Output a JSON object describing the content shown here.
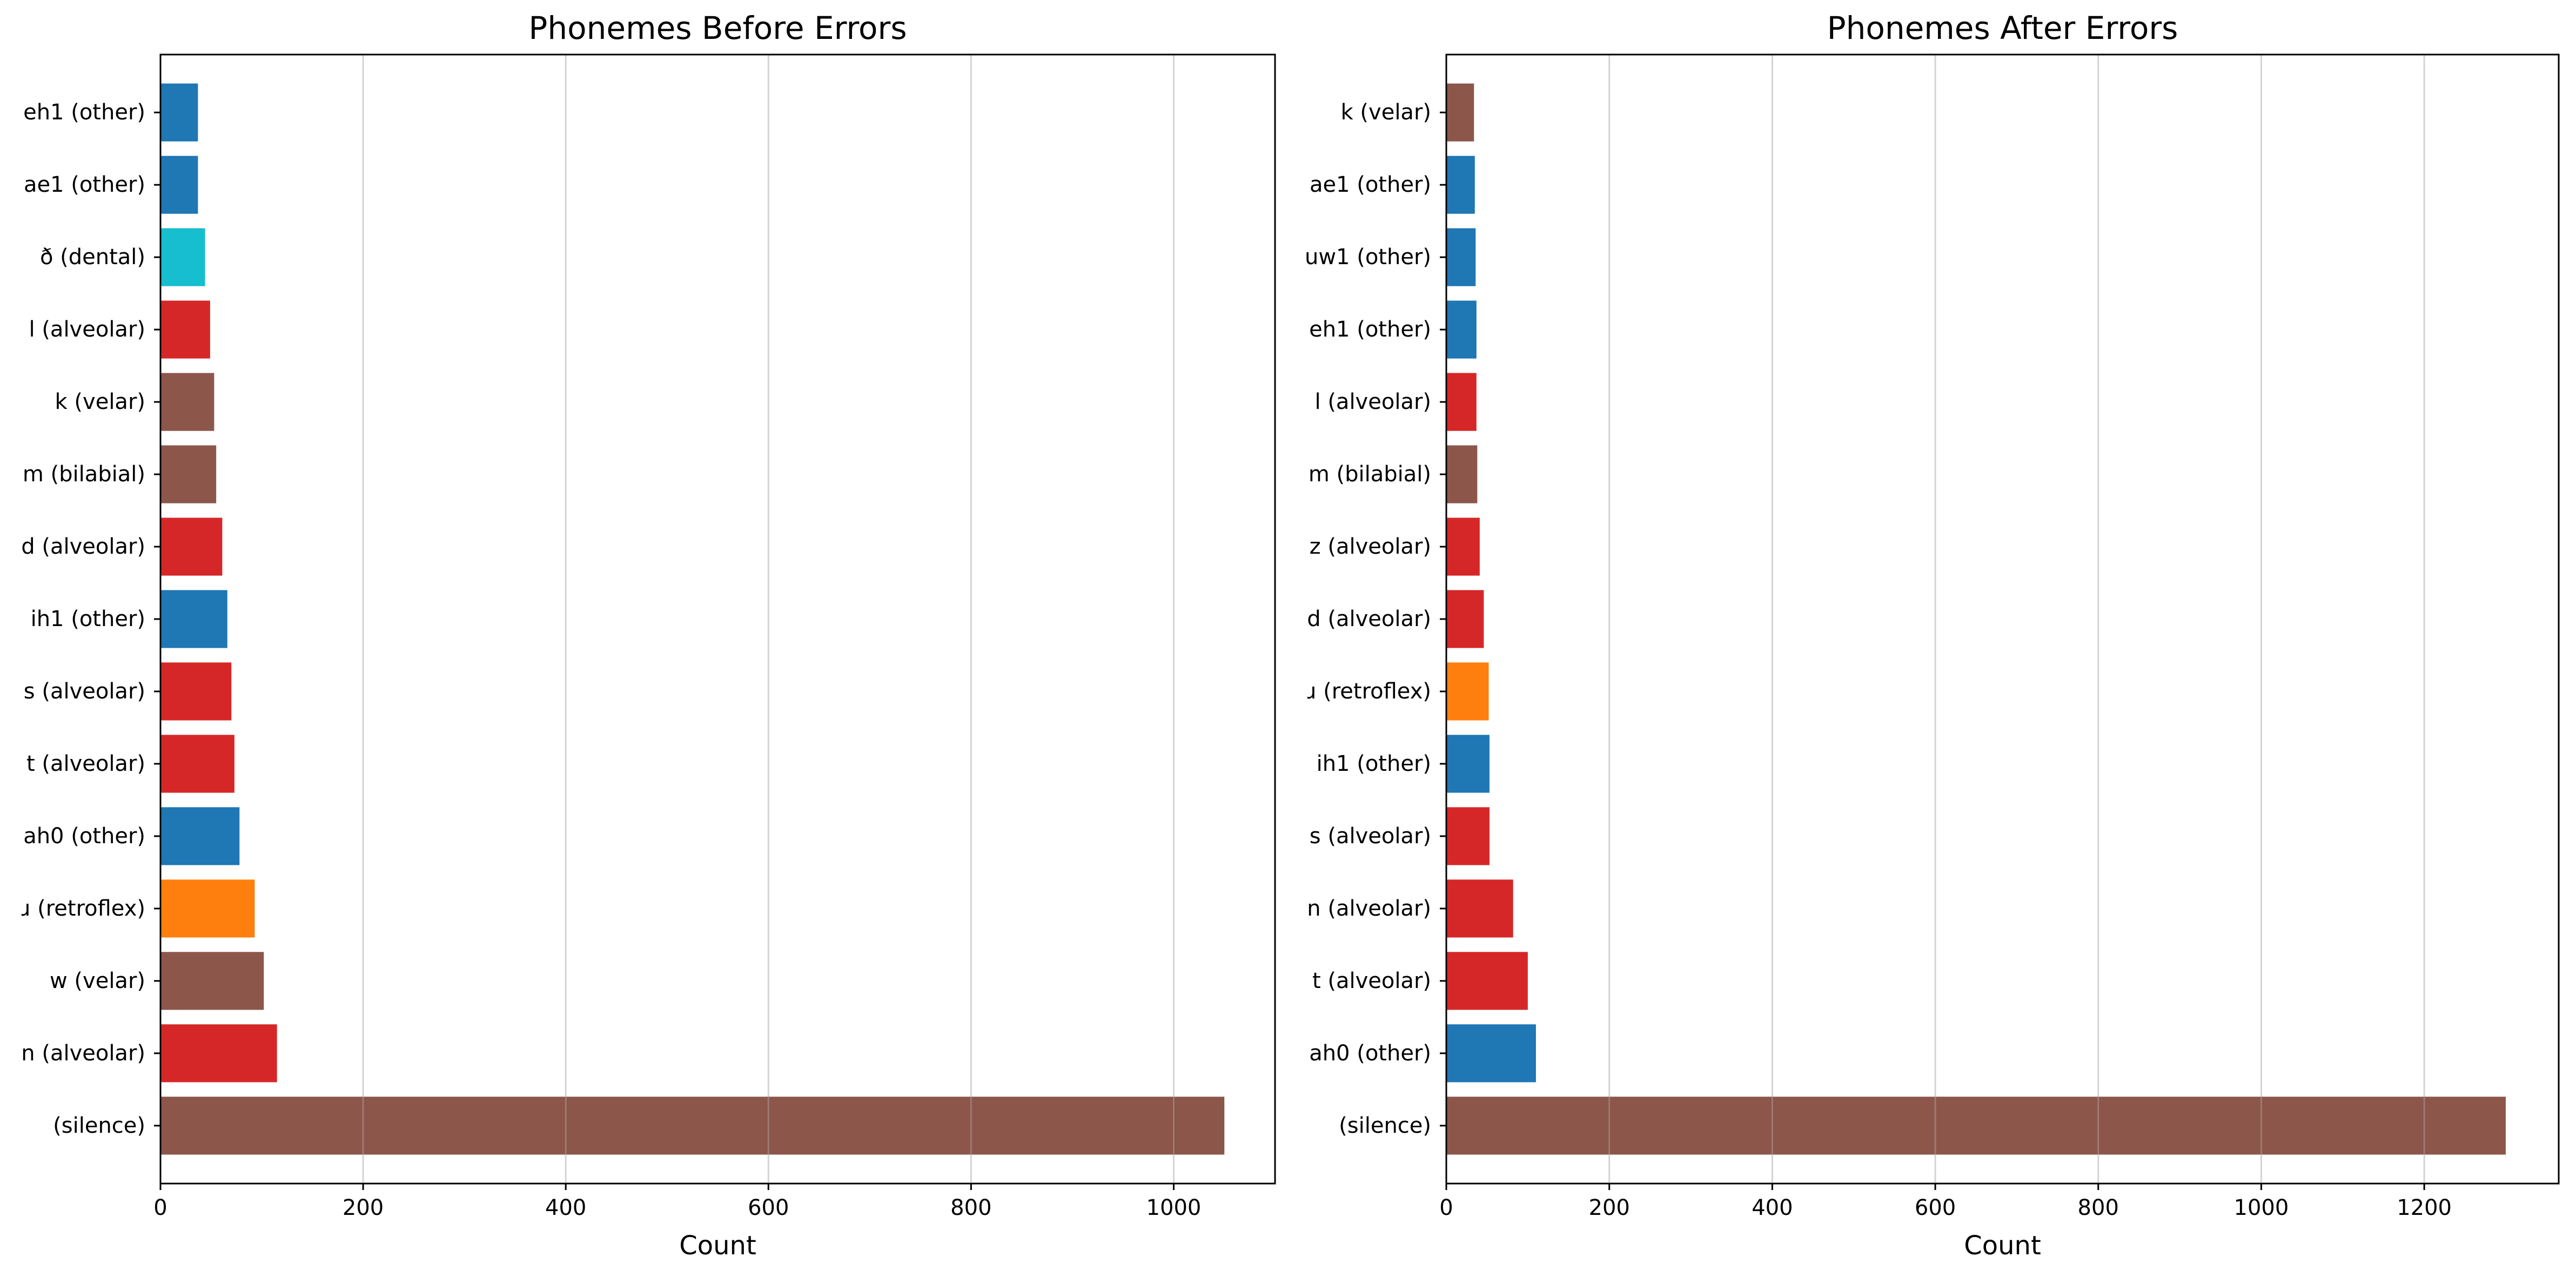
{
  "chart_data": [
    {
      "type": "bar",
      "orientation": "horizontal",
      "title": "Phonemes Before Errors",
      "xlabel": "Count",
      "ylabel": "",
      "xlim": [
        0,
        1100
      ],
      "xticks": [
        0,
        200,
        400,
        600,
        800,
        1000
      ],
      "grid": "vertical lines only",
      "categories": [
        "(silence)",
        "n (alveolar)",
        "w (velar)",
        "ɹ (retroflex)",
        "ah0 (other)",
        "t (alveolar)",
        "s (alveolar)",
        "ih1 (other)",
        "d (alveolar)",
        "m (bilabial)",
        "k (velar)",
        "l (alveolar)",
        "ð (dental)",
        "ae1 (other)",
        "eh1 (other)"
      ],
      "values": [
        1050,
        115,
        102,
        93,
        78,
        73,
        70,
        66,
        61,
        55,
        53,
        49,
        44,
        37,
        37
      ],
      "colors": [
        "#8c564b",
        "#d62728",
        "#8c564b",
        "#ff7f0e",
        "#1f77b4",
        "#d62728",
        "#d62728",
        "#1f77b4",
        "#d62728",
        "#8c564b",
        "#8c564b",
        "#d62728",
        "#17becf",
        "#1f77b4",
        "#1f77b4"
      ]
    },
    {
      "type": "bar",
      "orientation": "horizontal",
      "title": "Phonemes After Errors",
      "xlabel": "Count",
      "ylabel": "",
      "xlim": [
        0,
        1365
      ],
      "xticks": [
        0,
        200,
        400,
        600,
        800,
        1000,
        1200
      ],
      "grid": "vertical lines only",
      "categories": [
        "(silence)",
        "ah0 (other)",
        "t (alveolar)",
        "n (alveolar)",
        "s (alveolar)",
        "ih1 (other)",
        "ɹ (retroflex)",
        "d (alveolar)",
        "z (alveolar)",
        "m (bilabial)",
        "l (alveolar)",
        "eh1 (other)",
        "uw1 (other)",
        "ae1 (other)",
        "k (velar)"
      ],
      "values": [
        1300,
        110,
        100,
        82,
        53,
        53,
        52,
        46,
        41,
        38,
        37,
        37,
        36,
        35,
        34
      ],
      "colors": [
        "#8c564b",
        "#1f77b4",
        "#d62728",
        "#d62728",
        "#d62728",
        "#1f77b4",
        "#ff7f0e",
        "#d62728",
        "#d62728",
        "#8c564b",
        "#d62728",
        "#1f77b4",
        "#1f77b4",
        "#1f77b4",
        "#8c564b"
      ]
    }
  ]
}
